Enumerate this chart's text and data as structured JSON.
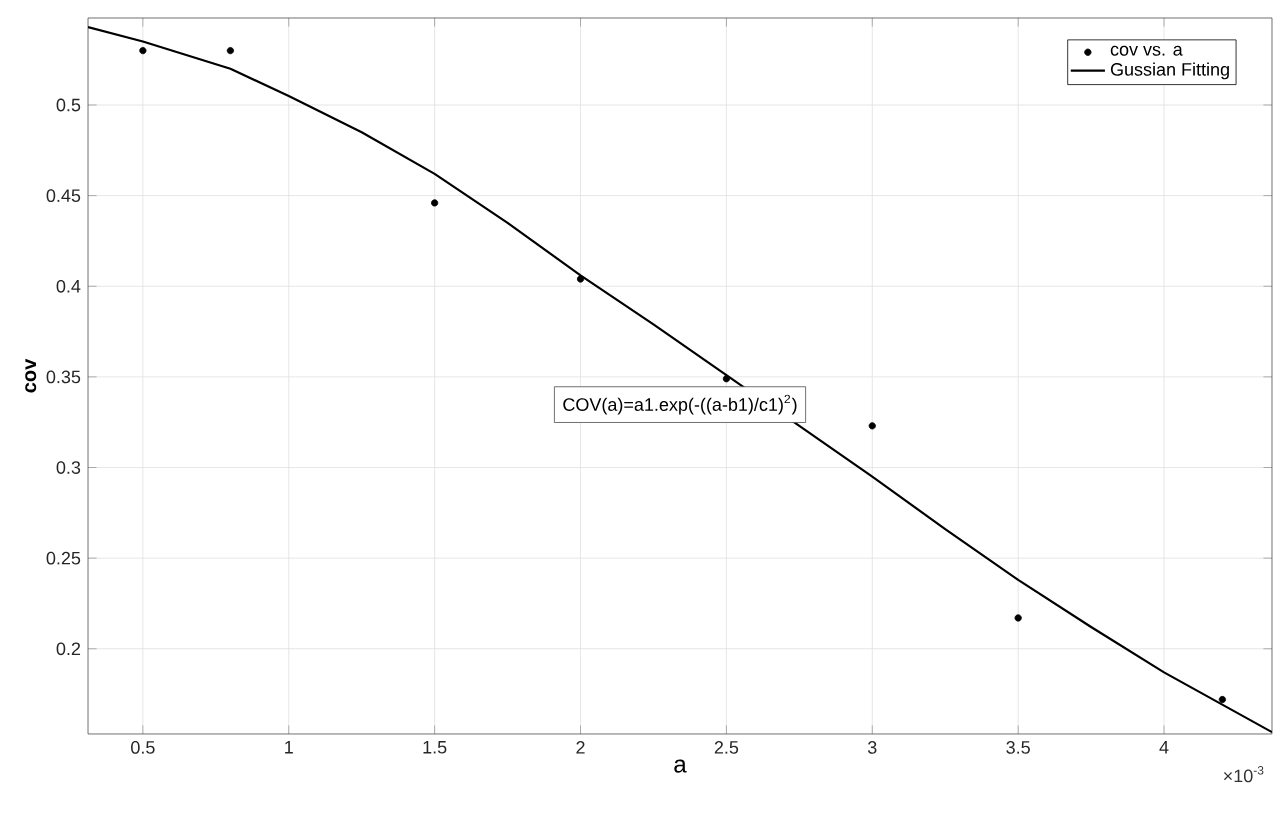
{
  "chart_data": {
    "type": "scatter",
    "xlabel": "a",
    "ylabel": "cov",
    "xlim": [
      0.312,
      4.37
    ],
    "ylim": [
      0.153,
      0.548
    ],
    "xticks": [
      0.5,
      1,
      1.5,
      2,
      2.5,
      3,
      3.5,
      4
    ],
    "yticks": [
      0.2,
      0.25,
      0.3,
      0.35,
      0.4,
      0.45,
      0.5
    ],
    "grid": true,
    "legend": "top right",
    "annotations": [
      "COV(a)=a1.exp(-((a-b1)/c1)$^{2}$)",
      "×10$^{-3}$"
    ],
    "series": [
      {
        "name": "cov vs. a",
        "marker": "circle",
        "color": "#000000",
        "x": [
          0.5,
          0.8,
          1.5,
          2,
          2.5,
          3,
          3.5,
          4.2
        ],
        "values": [
          0.53,
          0.53,
          0.446,
          0.404,
          0.349,
          0.323,
          0.217,
          0.172
        ]
      },
      {
        "name": "Gussian Fitting",
        "type": "line",
        "marker": "none",
        "line_style": "solid",
        "color": "#000000",
        "x": [
          0.312,
          0.5,
          0.8,
          1,
          1.25,
          1.5,
          1.75,
          2,
          2.25,
          2.5,
          2.75,
          3,
          3.25,
          3.5,
          3.75,
          4,
          4.37
        ],
        "values": [
          0.543,
          0.535,
          0.52,
          0.505,
          0.485,
          0.462,
          0.435,
          0.406,
          0.379,
          0.351,
          0.323,
          0.295,
          0.266,
          0.238,
          0.212,
          0.187,
          0.154
        ]
      }
    ]
  }
}
